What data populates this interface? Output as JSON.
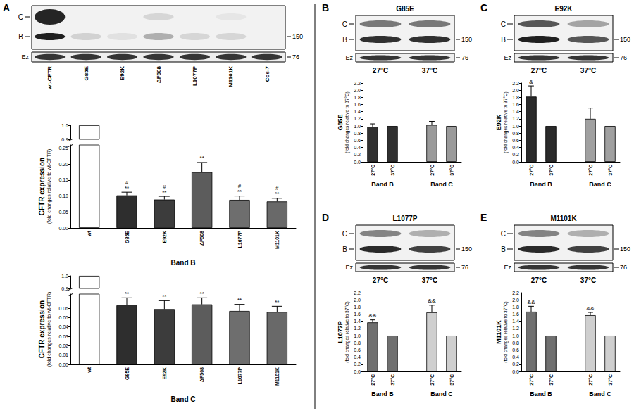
{
  "chart_data": [
    {
      "type": "bar",
      "categories": [
        "wt",
        "G85E",
        "E92K",
        "ΔF508",
        "L1077P",
        "M1101K"
      ],
      "values": [
        1.0,
        0.102,
        0.089,
        0.175,
        0.088,
        0.083
      ],
      "errors": [
        null,
        0.01,
        0.01,
        0.03,
        0.012,
        0.01
      ],
      "annotations": [
        null,
        [
          "#",
          "**"
        ],
        [
          "#",
          "**"
        ],
        [
          "**"
        ],
        [
          "#",
          "**"
        ],
        [
          "#",
          "**"
        ]
      ],
      "colors": [
        "#ffffff",
        "#2e2e2e",
        "#3c3c3c",
        "#5c5c5c",
        "#6e6e6e",
        "#696969"
      ],
      "ylim": [
        0,
        1.0
      ],
      "y_break": [
        0.26,
        0.9
      ],
      "yticks": [
        {
          "value": 0,
          "label": "0.00"
        },
        0.05,
        {
          "value": 0.1,
          "label": "0.10"
        },
        0.15,
        {
          "value": 0.2,
          "label": "0.20"
        },
        0.25,
        0.9,
        {
          "value": 1.0,
          "label": "1.0"
        }
      ],
      "y_label": "CFTR expression",
      "y_sublabel": "(fold changes relative to wt-CFTR)",
      "x_label": "Band B"
    },
    {
      "type": "bar",
      "categories": [
        "wt",
        "G85E",
        "E92K",
        "ΔF508",
        "L1077P",
        "M1101K"
      ],
      "values": [
        1.0,
        0.063,
        0.059,
        0.064,
        0.057,
        0.056
      ],
      "errors": [
        null,
        0.008,
        0.009,
        0.007,
        0.007,
        0.006
      ],
      "annotations": [
        null,
        [
          "**"
        ],
        [
          "**"
        ],
        [
          "**"
        ],
        [
          "**"
        ],
        [
          "**"
        ]
      ],
      "colors": [
        "#ffffff",
        "#2e2e2e",
        "#3c3c3c",
        "#5c5c5c",
        "#6e6e6e",
        "#696969"
      ],
      "ylim": [
        0,
        1.0
      ],
      "y_break": [
        0.075,
        0.9
      ],
      "yticks": [
        {
          "value": 0,
          "label": "0.00"
        },
        0.01,
        0.02,
        0.03,
        0.04,
        0.05,
        0.06,
        0.9,
        {
          "value": 1.0,
          "label": "1.0"
        }
      ],
      "y_label": "CFTR expression",
      "y_sublabel": "(fold changes relative to wt-CFTR)",
      "x_label": "Band C"
    },
    {
      "type": "bar",
      "categories": [
        "27°C",
        "37°C",
        null,
        "27°C",
        "37°C"
      ],
      "values": [
        0.98,
        1.0,
        null,
        1.03,
        1.0
      ],
      "errors": [
        0.08,
        null,
        null,
        0.1,
        null
      ],
      "colors": [
        "#303030",
        "#303030",
        null,
        "#9a9a9a",
        "#9a9a9a"
      ],
      "ylim": [
        0,
        2.2
      ],
      "yticks": [
        {
          "value": 0,
          "label": "0.0"
        },
        0.2,
        0.4,
        0.6,
        0.8,
        {
          "value": 1,
          "label": "1.0"
        },
        1.2,
        1.4,
        1.6,
        1.8,
        {
          "value": 2,
          "label": "2.0"
        },
        2.2
      ],
      "y_label": "G85E",
      "y_sublabel": "(fold changes relative to 37°C)",
      "group_labels": [
        "Band B",
        "Band C"
      ]
    },
    {
      "type": "bar",
      "categories": [
        "27°C",
        "37°C",
        null,
        "27°C",
        "37°C"
      ],
      "values": [
        1.82,
        1.0,
        null,
        1.2,
        1.0
      ],
      "errors": [
        0.3,
        null,
        null,
        0.3,
        null
      ],
      "annotations": [
        [
          "&"
        ],
        null,
        null,
        null,
        null
      ],
      "colors": [
        "#2a2a2a",
        "#2a2a2a",
        null,
        "#a0a0a0",
        "#a0a0a0"
      ],
      "ylim": [
        0,
        2.2
      ],
      "yticks": [
        {
          "value": 0,
          "label": "0.0"
        },
        0.2,
        0.4,
        0.6,
        0.8,
        {
          "value": 1,
          "label": "1.0"
        },
        1.2,
        1.4,
        1.6,
        1.8,
        {
          "value": 2,
          "label": "2.0"
        },
        2.2
      ],
      "y_label": "E92K",
      "y_sublabel": "(fold changes relative to 37°C)",
      "group_labels": [
        "Band B",
        "Band C"
      ]
    },
    {
      "type": "bar",
      "categories": [
        "27°C",
        "37°C",
        null,
        "27°C",
        "37°C"
      ],
      "values": [
        1.37,
        1.0,
        null,
        1.65,
        1.0
      ],
      "errors": [
        0.07,
        null,
        null,
        0.2,
        null
      ],
      "annotations": [
        [
          "&&"
        ],
        null,
        null,
        [
          "&&"
        ],
        null
      ],
      "colors": [
        "#707070",
        "#707070",
        null,
        "#cfcfcf",
        "#cfcfcf"
      ],
      "ylim": [
        0,
        2.2
      ],
      "yticks": [
        {
          "value": 0,
          "label": "0.0"
        },
        0.2,
        0.4,
        0.6,
        0.8,
        {
          "value": 1,
          "label": "1.0"
        },
        1.2,
        1.4,
        1.6,
        1.8,
        {
          "value": 2,
          "label": "2.0"
        },
        2.2
      ],
      "y_label": "L1077P",
      "y_sublabel": "(fold changes relative to 37°C)",
      "group_labels": [
        "Band B",
        "Band C"
      ]
    },
    {
      "type": "bar",
      "categories": [
        "27°C",
        "37°C",
        null,
        "27°C",
        "37°C"
      ],
      "values": [
        1.67,
        1.0,
        null,
        1.57,
        1.0
      ],
      "errors": [
        0.15,
        null,
        null,
        0.08,
        null
      ],
      "annotations": [
        [
          "&&"
        ],
        null,
        null,
        [
          "&&"
        ],
        null
      ],
      "colors": [
        "#707070",
        "#707070",
        null,
        "#cfcfcf",
        "#cfcfcf"
      ],
      "ylim": [
        0,
        2.2
      ],
      "yticks": [
        {
          "value": 0,
          "label": "0.0"
        },
        0.2,
        0.4,
        0.6,
        0.8,
        {
          "value": 1,
          "label": "1.0"
        },
        1.2,
        1.4,
        1.6,
        1.8,
        {
          "value": 2,
          "label": "2.0"
        },
        2.2
      ],
      "y_label": "M1101K",
      "y_sublabel": "(fold changes relative to 37°C)",
      "group_labels": [
        "Band B",
        "Band C"
      ]
    }
  ],
  "blots": [
    {
      "letter": "A",
      "bands": [
        "C",
        "B"
      ],
      "mw": 150,
      "loading": "Ez",
      "loading_mw": 76,
      "lanes": [
        "wt-CFTR",
        "G85E",
        "E92K",
        "ΔF508",
        "L1077P",
        "M1101K",
        "Cos-7"
      ]
    },
    {
      "letter": "B",
      "title": "G85E",
      "bands": [
        "C",
        "B"
      ],
      "mw": 150,
      "loading": "Ez",
      "loading_mw": 76,
      "lanes": [
        "27°C",
        "37°C"
      ]
    },
    {
      "letter": "C",
      "title": "E92K",
      "bands": [
        "C",
        "B"
      ],
      "mw": 150,
      "loading": "Ez",
      "loading_mw": 76,
      "lanes": [
        "27°C",
        "37°C"
      ]
    },
    {
      "letter": "D",
      "title": "L1077P",
      "bands": [
        "C",
        "B"
      ],
      "mw": 150,
      "loading": "Ez",
      "loading_mw": 76,
      "lanes": [
        "27°C",
        "37°C"
      ]
    },
    {
      "letter": "E",
      "title": "M1101K",
      "bands": [
        "C",
        "B"
      ],
      "mw": 150,
      "loading": "Ez",
      "loading_mw": 76,
      "lanes": [
        "27°C",
        "37°C"
      ]
    }
  ]
}
